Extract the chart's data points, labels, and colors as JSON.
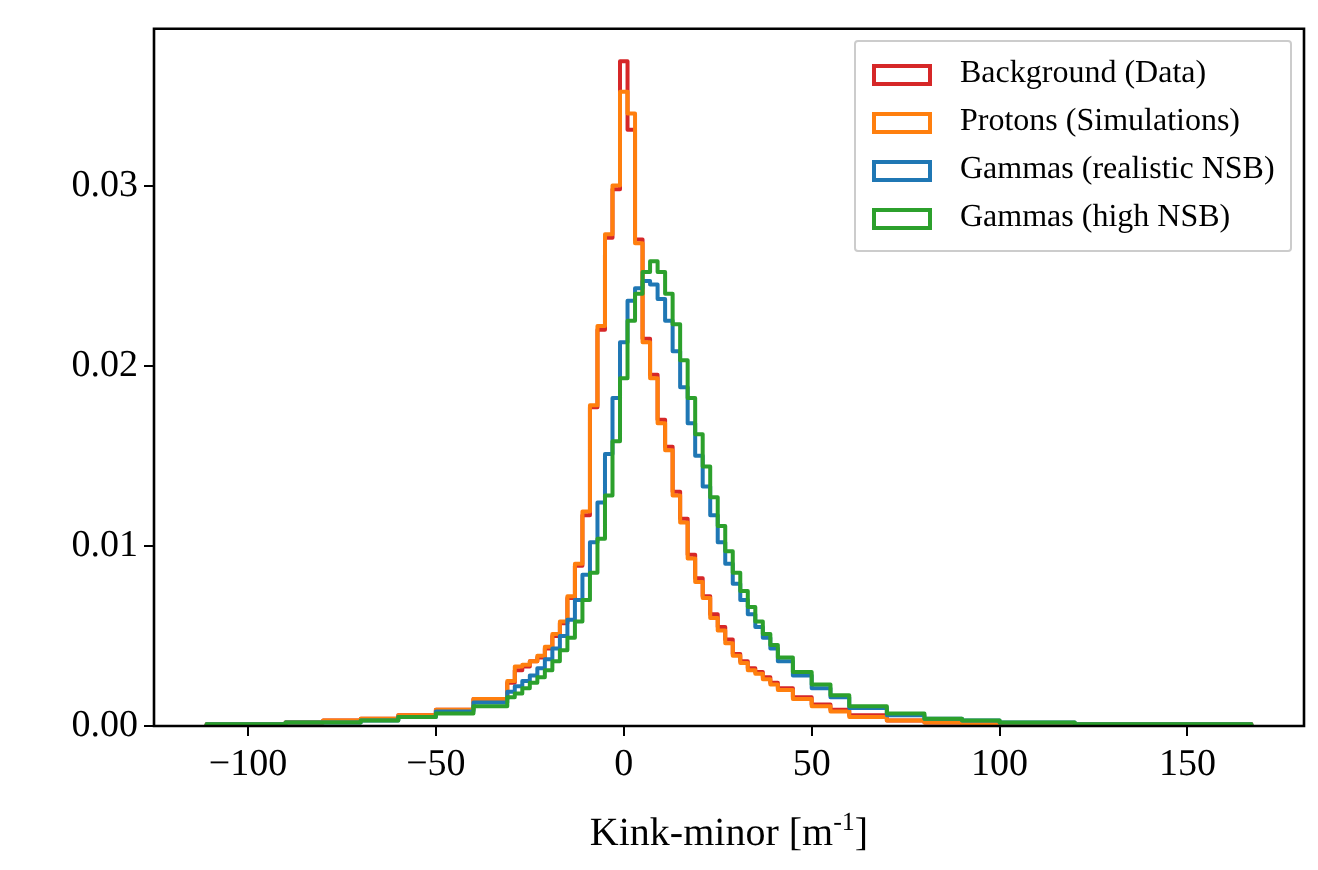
{
  "chart_data": {
    "type": "histogram",
    "xlabel": "Kink-minor [m$^{-1}$]",
    "bins": [
      -111,
      -90,
      -80,
      -70,
      -60,
      -50,
      -40,
      -31,
      -29,
      -27,
      -25,
      -23,
      -21,
      -19,
      -17,
      -15,
      -13,
      -11,
      -9,
      -7,
      -5,
      -3,
      -1,
      1,
      3,
      5,
      7,
      9,
      11,
      13,
      15,
      17,
      19,
      21,
      23,
      25,
      27,
      29,
      31,
      33,
      35,
      37,
      39,
      41,
      45,
      50,
      55,
      60,
      70,
      80,
      90,
      100,
      120,
      167
    ],
    "series": [
      {
        "name": "Background (Data)",
        "color": "#d62728",
        "values": [
          0.0001,
          0.0002,
          0.0003,
          0.0004,
          0.0006,
          0.0009,
          0.0015,
          0.0024,
          0.0031,
          0.0033,
          0.0036,
          0.0038,
          0.0043,
          0.005,
          0.0057,
          0.0071,
          0.0089,
          0.0117,
          0.0177,
          0.022,
          0.0271,
          0.0298,
          0.0369,
          0.0331,
          0.027,
          0.0215,
          0.0195,
          0.017,
          0.0155,
          0.013,
          0.0115,
          0.0095,
          0.0082,
          0.0072,
          0.0062,
          0.0055,
          0.0048,
          0.004,
          0.0036,
          0.0032,
          0.003,
          0.0027,
          0.0024,
          0.0021,
          0.0016,
          0.0012,
          0.0009,
          0.0006,
          0.0003,
          0.0002,
          0.0001,
          0.0001,
          0.0001
        ]
      },
      {
        "name": "Protons (Simulations)",
        "color": "#ff7f0e",
        "values": [
          0.0001,
          0.0002,
          0.0003,
          0.0004,
          0.0006,
          0.0009,
          0.0015,
          0.0025,
          0.0033,
          0.0034,
          0.0036,
          0.0039,
          0.0044,
          0.0051,
          0.0058,
          0.0072,
          0.009,
          0.0119,
          0.0178,
          0.0222,
          0.0273,
          0.03,
          0.0352,
          0.034,
          0.0268,
          0.0213,
          0.0193,
          0.0168,
          0.0153,
          0.0128,
          0.0113,
          0.0093,
          0.008,
          0.0071,
          0.006,
          0.0053,
          0.0046,
          0.0039,
          0.0035,
          0.0031,
          0.0029,
          0.0026,
          0.0023,
          0.002,
          0.0015,
          0.0011,
          0.0008,
          0.0005,
          0.0003,
          0.0002,
          0.0001,
          0.0001,
          0.0001
        ]
      },
      {
        "name": "Gammas (realistic NSB)",
        "color": "#1f77b4",
        "values": [
          0.0001,
          0.0002,
          0.0002,
          0.0003,
          0.0005,
          0.0008,
          0.0013,
          0.0019,
          0.0022,
          0.0025,
          0.0028,
          0.0032,
          0.0037,
          0.0043,
          0.005,
          0.0059,
          0.007,
          0.0084,
          0.0102,
          0.0124,
          0.0151,
          0.0182,
          0.0213,
          0.0236,
          0.0243,
          0.0247,
          0.0245,
          0.0237,
          0.0225,
          0.0208,
          0.0188,
          0.0168,
          0.015,
          0.0133,
          0.0117,
          0.0102,
          0.009,
          0.0079,
          0.007,
          0.0062,
          0.0055,
          0.0049,
          0.0043,
          0.0036,
          0.0028,
          0.0021,
          0.0016,
          0.001,
          0.0006,
          0.0004,
          0.0003,
          0.0002,
          0.0001
        ]
      },
      {
        "name": "Gammas (high NSB)",
        "color": "#2ca02c",
        "values": [
          0.0001,
          0.0002,
          0.0002,
          0.0003,
          0.0005,
          0.0007,
          0.0011,
          0.0016,
          0.0018,
          0.0021,
          0.0024,
          0.0027,
          0.0031,
          0.0036,
          0.0042,
          0.0049,
          0.0058,
          0.007,
          0.0085,
          0.0104,
          0.0128,
          0.0158,
          0.0193,
          0.0225,
          0.024,
          0.0252,
          0.0258,
          0.0252,
          0.024,
          0.0223,
          0.0203,
          0.0182,
          0.0162,
          0.0144,
          0.0127,
          0.0111,
          0.0097,
          0.0085,
          0.0075,
          0.0066,
          0.0058,
          0.0051,
          0.0045,
          0.0038,
          0.003,
          0.0023,
          0.0017,
          0.0011,
          0.0007,
          0.0004,
          0.0003,
          0.0002,
          0.0001
        ]
      }
    ],
    "xlim": [
      -125,
      181
    ],
    "ylim": [
      0,
      0.0387
    ],
    "xticks": [
      {
        "value": -100,
        "label": "−100"
      },
      {
        "value": -50,
        "label": "−50"
      },
      0,
      50,
      100,
      150
    ],
    "yticks": [
      {
        "value": 0,
        "label": "0.00"
      },
      0.01,
      0.02,
      0.03
    ],
    "grid": false,
    "legend": "top right"
  }
}
